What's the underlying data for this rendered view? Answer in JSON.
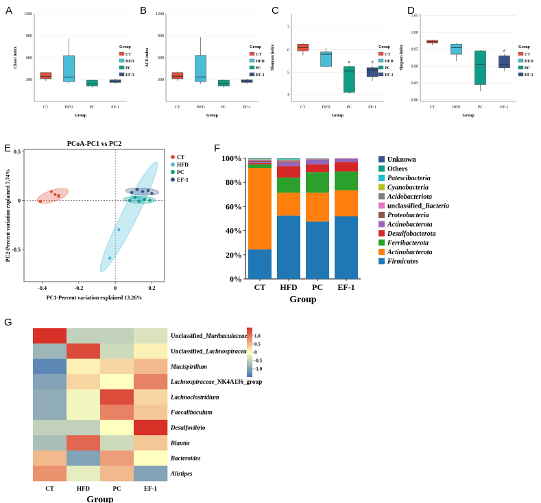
{
  "colors": {
    "CT": "#e0503c",
    "HFD": "#4bbcd8",
    "PC": "#0e9e86",
    "EF-1": "#3a5489"
  },
  "panels_abcd": [
    {
      "letter": "A",
      "ylabel": "Chao1 index",
      "xlabel": "Group",
      "yticks": [
        "300",
        "600",
        "900",
        "1200"
      ],
      "yrange": [
        0,
        1200
      ],
      "legend_title": "Group",
      "chart_data": {
        "type": "box",
        "categories": [
          "CT",
          "HFD",
          "PC",
          "EF-1"
        ],
        "boxes": [
          [
            280,
            310,
            340,
            395,
            400
          ],
          [
            240,
            270,
            335,
            625,
            870
          ],
          [
            190,
            210,
            240,
            290,
            300
          ],
          [
            240,
            260,
            275,
            295,
            310
          ]
        ],
        "annotations": [
          "",
          "",
          "",
          ""
        ]
      }
    },
    {
      "letter": "B",
      "ylabel": "ACE index",
      "xlabel": "Group",
      "yticks": [
        "300",
        "600",
        "900",
        "1200"
      ],
      "yrange": [
        0,
        1200
      ],
      "legend_title": "Group",
      "chart_data": {
        "type": "box",
        "categories": [
          "CT",
          "HFD",
          "PC",
          "EF-1"
        ],
        "boxes": [
          [
            280,
            310,
            345,
            395,
            410
          ],
          [
            240,
            270,
            335,
            630,
            880
          ],
          [
            190,
            210,
            245,
            290,
            300
          ],
          [
            240,
            260,
            280,
            295,
            310
          ]
        ],
        "annotations": [
          "",
          "",
          "",
          ""
        ]
      }
    },
    {
      "letter": "C",
      "ylabel": "Shannon index",
      "xlabel": "Group",
      "yticks": [
        "4",
        "5",
        "6",
        "7"
      ],
      "yrange": [
        3.7,
        7.6
      ],
      "legend_title": "Group",
      "chart_data": {
        "type": "box",
        "categories": [
          "CT",
          "HFD",
          "PC",
          "EF-1"
        ],
        "boxes": [
          [
            5.75,
            5.95,
            6.1,
            6.25,
            6.3
          ],
          [
            5.2,
            5.25,
            5.8,
            5.9,
            6.1
          ],
          [
            4.05,
            4.1,
            5.05,
            5.25,
            5.3
          ],
          [
            4.6,
            4.8,
            5.1,
            5.2,
            5.3
          ]
        ],
        "annotations": [
          "",
          "",
          "#",
          "#"
        ]
      }
    },
    {
      "letter": "D",
      "ylabel": "Simpson index",
      "xlabel": "Group",
      "yticks": [
        "0.80",
        "0.85",
        "0.90",
        "0.95",
        "1.00",
        "1.05"
      ],
      "yrange": [
        0.795,
        1.055
      ],
      "legend_title": "Group",
      "chart_data": {
        "type": "box",
        "categories": [
          "CT",
          "HFD",
          "PC",
          "EF-1"
        ],
        "boxes": [
          [
            0.962,
            0.968,
            0.972,
            0.976,
            0.978
          ],
          [
            0.915,
            0.935,
            0.955,
            0.965,
            0.968
          ],
          [
            0.825,
            0.845,
            0.905,
            0.945,
            0.947
          ],
          [
            0.885,
            0.895,
            0.905,
            0.93,
            0.935
          ]
        ],
        "annotations": [
          "",
          "",
          "",
          "#"
        ]
      }
    }
  ],
  "panel_e": {
    "letter": "E",
    "title": "PCoA-PC1 vs PC2",
    "xlabel": "PC1-Percent variation explained 13.26%",
    "ylabel": "PC2-Percent variation explained 7.74%",
    "xticks": [
      "-0.4",
      "-0.2",
      "0",
      "0.2"
    ],
    "yticks": [
      "-0.5",
      "0",
      "0.5"
    ],
    "legend": [
      "CT",
      "HFD",
      "PC",
      "EF-1"
    ],
    "chart_data": {
      "type": "scatter",
      "xlim": [
        -0.5,
        0.27
      ],
      "ylim": [
        -0.83,
        0.52
      ],
      "series": [
        {
          "name": "CT",
          "points": [
            [
              -0.41,
              -0.01
            ],
            [
              -0.35,
              0.09
            ],
            [
              -0.33,
              0.06
            ],
            [
              -0.31,
              0.05
            ],
            [
              -0.31,
              0.04
            ]
          ]
        },
        {
          "name": "HFD",
          "points": [
            [
              -0.03,
              -0.59
            ],
            [
              0.02,
              -0.3
            ],
            [
              0.1,
              0.03
            ],
            [
              0.13,
              0.02
            ],
            [
              0.15,
              0.0
            ]
          ]
        },
        {
          "name": "PC",
          "points": [
            [
              0.08,
              0.0
            ],
            [
              0.11,
              0.03
            ],
            [
              0.13,
              -0.01
            ],
            [
              0.16,
              0.01
            ],
            [
              0.19,
              0.0
            ]
          ]
        },
        {
          "name": "EF-1",
          "points": [
            [
              0.09,
              0.08
            ],
            [
              0.12,
              0.11
            ],
            [
              0.15,
              0.09
            ],
            [
              0.18,
              0.1
            ],
            [
              0.2,
              0.07
            ]
          ]
        }
      ]
    }
  },
  "panel_f": {
    "letter": "F",
    "xlabel": "Group",
    "yticks": [
      "0%",
      "20%",
      "40%",
      "60%",
      "80%",
      "100%"
    ],
    "legend": [
      {
        "label": "Unknown",
        "color": "#3a5489",
        "italic": false
      },
      {
        "label": "Others",
        "color": "#0e9e86",
        "italic": false
      },
      {
        "label": "Patescibacteria",
        "color": "#18c0d0",
        "italic": true
      },
      {
        "label": "Cyanobacteria",
        "color": "#bcbd22",
        "italic": true
      },
      {
        "label": "Acidobacteriota",
        "color": "#7f7f7f",
        "italic": true
      },
      {
        "label": "unclassified_",
        "label2": "Bacteria",
        "color": "#e377c2",
        "italic": false
      },
      {
        "label": "Proteobacteria",
        "color": "#8c564b",
        "italic": true
      },
      {
        "label": "Actinobacterota",
        "color": "#9467bd",
        "italic": true
      },
      {
        "label": "Desulfobacterota",
        "color": "#d62728",
        "italic": true
      },
      {
        "label": "Ferribacterota",
        "color": "#2ca02c",
        "italic": true
      },
      {
        "label": "Actinobacterota",
        "color": "#ff7f0e",
        "italic": true
      },
      {
        "label": "Firmicutes",
        "color": "#1f77b4",
        "italic": true
      }
    ],
    "chart_data": {
      "type": "bar",
      "stacked": true,
      "categories": [
        "CT",
        "HFD",
        "PC",
        "EF-1"
      ],
      "series": [
        {
          "name": "Firmicutes",
          "values": [
            24.5,
            52.5,
            47.5,
            52
          ]
        },
        {
          "name": "Actinobacterota",
          "values": [
            67.5,
            19,
            24,
            21.5
          ]
        },
        {
          "name": "Ferribacterota",
          "values": [
            3,
            12.5,
            17,
            15.5
          ]
        },
        {
          "name": "Desulfobacterota",
          "values": [
            1,
            9.5,
            6.5,
            8
          ]
        },
        {
          "name": "Actinobacterota",
          "values": [
            1,
            3,
            4,
            2.5
          ]
        },
        {
          "name": "Proteobacteria",
          "values": [
            1,
            1,
            0.3,
            0.2
          ]
        },
        {
          "name": "unclassified_Bacteria",
          "values": [
            0.5,
            0.5,
            0.2,
            0.2
          ]
        },
        {
          "name": "Acidobacteriota",
          "values": [
            0.5,
            0.5,
            0.2,
            0.1
          ]
        },
        {
          "name": "Cyanobacteria",
          "values": [
            0.3,
            0.5,
            0.1,
            0
          ]
        },
        {
          "name": "Patescibacteria",
          "values": [
            0.2,
            0.5,
            0.1,
            0
          ]
        },
        {
          "name": "Others",
          "values": [
            0.3,
            0.3,
            0.1,
            0
          ]
        },
        {
          "name": "Unknown",
          "values": [
            0.2,
            0.2,
            0,
            0
          ]
        }
      ]
    }
  },
  "panel_g": {
    "letter": "G",
    "xlabel": "Group",
    "scale_ticks": [
      "1.0",
      "0.5",
      "0",
      "-0.5",
      "-1.0"
    ],
    "rows": [
      {
        "pre": "Unclassified_",
        "it": "Muribaculaceae"
      },
      {
        "pre": "Unclassified_",
        "it": "Lachnospiraceae"
      },
      {
        "pre": "",
        "it": "Mucispirillum"
      },
      {
        "pre": "",
        "it": "Lachnospiraceae",
        "post": "_NK4A136_group"
      },
      {
        "pre": "",
        "it": "Lachnoclostridium"
      },
      {
        "pre": "",
        "it": "Faecalibaculum"
      },
      {
        "pre": "",
        "it": "Desulfovibrio"
      },
      {
        "pre": "",
        "it": "Blautia"
      },
      {
        "pre": "",
        "it": "Bacteroides"
      },
      {
        "pre": "",
        "it": "Alistipes"
      }
    ],
    "chart_data": {
      "type": "heatmap",
      "columns": [
        "CT",
        "HFD",
        "PC",
        "EF-1"
      ],
      "values": [
        [
          1.5,
          -0.5,
          -0.5,
          -0.3
        ],
        [
          -0.8,
          1.3,
          -0.4,
          0.1
        ],
        [
          -1.3,
          0.1,
          0.3,
          0.5
        ],
        [
          -1.0,
          0.3,
          0.0,
          0.9
        ],
        [
          -0.9,
          -0.1,
          1.3,
          0.3
        ],
        [
          -0.9,
          -0.1,
          0.9,
          0.4
        ],
        [
          -0.5,
          -0.5,
          0.0,
          1.5
        ],
        [
          -0.7,
          1.1,
          -0.4,
          0.4
        ],
        [
          0.5,
          -1.0,
          0.7,
          0.0
        ],
        [
          0.8,
          -0.2,
          0.5,
          -1.0
        ]
      ]
    }
  }
}
